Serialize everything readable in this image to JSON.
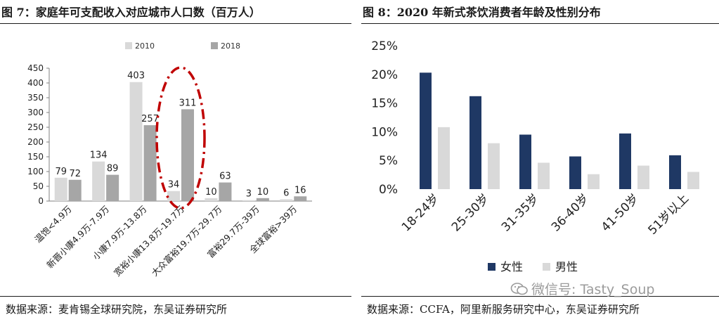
{
  "left": {
    "title": "图 7：家庭年可支配收入对应城市人口数（百万人）",
    "source": "数据来源：麦肯锡全球研究院，东吴证券研究所"
  },
  "right": {
    "title": "图 8：2020 年新式茶饮消费者年龄及性别分布",
    "source": "数据来源：CCFA，阿里新服务研究中心，东吴证券研究所"
  },
  "watermark": "微信号: Tasty_Soup",
  "colors": {
    "s2010": "#d9d9d9",
    "s2018": "#a6a6a6",
    "female": "#1f3864",
    "male": "#d9d9d9",
    "highlight": "#c00000"
  },
  "chart_data": [
    {
      "type": "bar",
      "categories": [
        "温饱<4.9万",
        "新晋小康4.9万-7.9万",
        "小康7.9万-13.8万",
        "宽裕小康13.8万-19.7万",
        "大众富裕19.7万-29.7万",
        "富裕29.7万-39万",
        "全球富裕>39万"
      ],
      "series": [
        {
          "name": "2010",
          "values": [
            79,
            134,
            403,
            34,
            10,
            3,
            6
          ]
        },
        {
          "name": "2018",
          "values": [
            72,
            89,
            257,
            311,
            63,
            10,
            16
          ]
        }
      ],
      "ylim": [
        0,
        450
      ],
      "yticks": [
        0,
        50,
        100,
        150,
        200,
        250,
        300,
        350,
        400,
        450
      ],
      "legend": "top",
      "grid": false
    },
    {
      "type": "bar",
      "categories": [
        "18-24岁",
        "25-30岁",
        "31-35岁",
        "36-40岁",
        "41-50岁",
        "51岁以上"
      ],
      "series": [
        {
          "name": "女性",
          "values": [
            0.203,
            0.162,
            0.095,
            0.057,
            0.097,
            0.059
          ]
        },
        {
          "name": "男性",
          "values": [
            0.108,
            0.08,
            0.046,
            0.026,
            0.041,
            0.03
          ]
        }
      ],
      "ylim": [
        0,
        0.25
      ],
      "yticks": [
        "0%",
        "5%",
        "10%",
        "15%",
        "20%",
        "25%"
      ],
      "legend": "bottom",
      "grid": false
    }
  ]
}
